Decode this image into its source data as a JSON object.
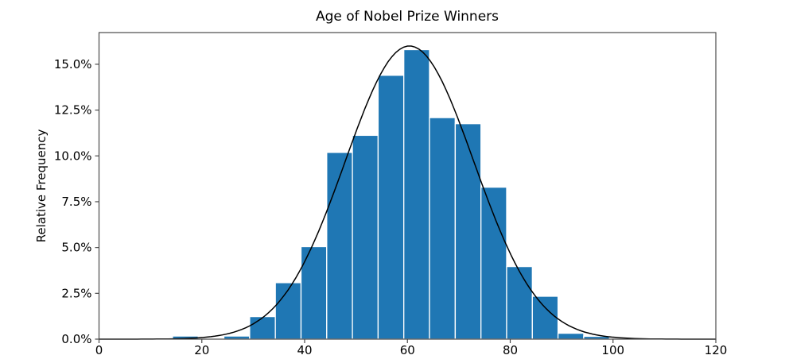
{
  "figure": {
    "title": "Age of Nobel Prize Winners",
    "ylabel": "Relative Frequency"
  },
  "chart_data": {
    "type": "bar",
    "subtype": "histogram_with_normal_curve_overlay",
    "title": "Age of Nobel Prize Winners",
    "xlabel": "",
    "ylabel": "Relative Frequency",
    "xlim": [
      0,
      120
    ],
    "ylim_percent": [
      0,
      16.73
    ],
    "xticks": [
      0,
      20,
      40,
      60,
      80,
      100,
      120
    ],
    "xtick_labels": [
      "0",
      "20",
      "40",
      "60",
      "80",
      "100",
      "120"
    ],
    "yticks_percent": [
      0.0,
      2.5,
      5.0,
      7.5,
      10.0,
      12.5,
      15.0
    ],
    "ytick_labels": [
      "0.0%",
      "2.5%",
      "5.0%",
      "7.5%",
      "10.0%",
      "12.5%",
      "15.0%"
    ],
    "grid": false,
    "legend": null,
    "bin_width": 5,
    "bin_edges": [
      14.3,
      19.3,
      24.3,
      29.3,
      34.3,
      39.3,
      44.3,
      49.3,
      54.3,
      59.3,
      64.3,
      69.3,
      74.3,
      79.3,
      84.3,
      89.3,
      94.3,
      99.3
    ],
    "values_percent": [
      0.17,
      0.0,
      0.17,
      1.23,
      3.08,
      5.05,
      10.19,
      11.12,
      14.4,
      15.8,
      12.09,
      11.76,
      8.29,
      3.96,
      2.34,
      0.32,
      0.15
    ],
    "bar_color": "#1f77b4",
    "bar_edge_color": "#ffffff",
    "curve": {
      "shape": "normal_pdf",
      "mean": 60.4,
      "std": 12.5,
      "peak_percent": 16.0,
      "color": "#000000",
      "linewidth": 1.5
    },
    "frame_color": "#4a4a4a",
    "background_color": "#ffffff"
  }
}
